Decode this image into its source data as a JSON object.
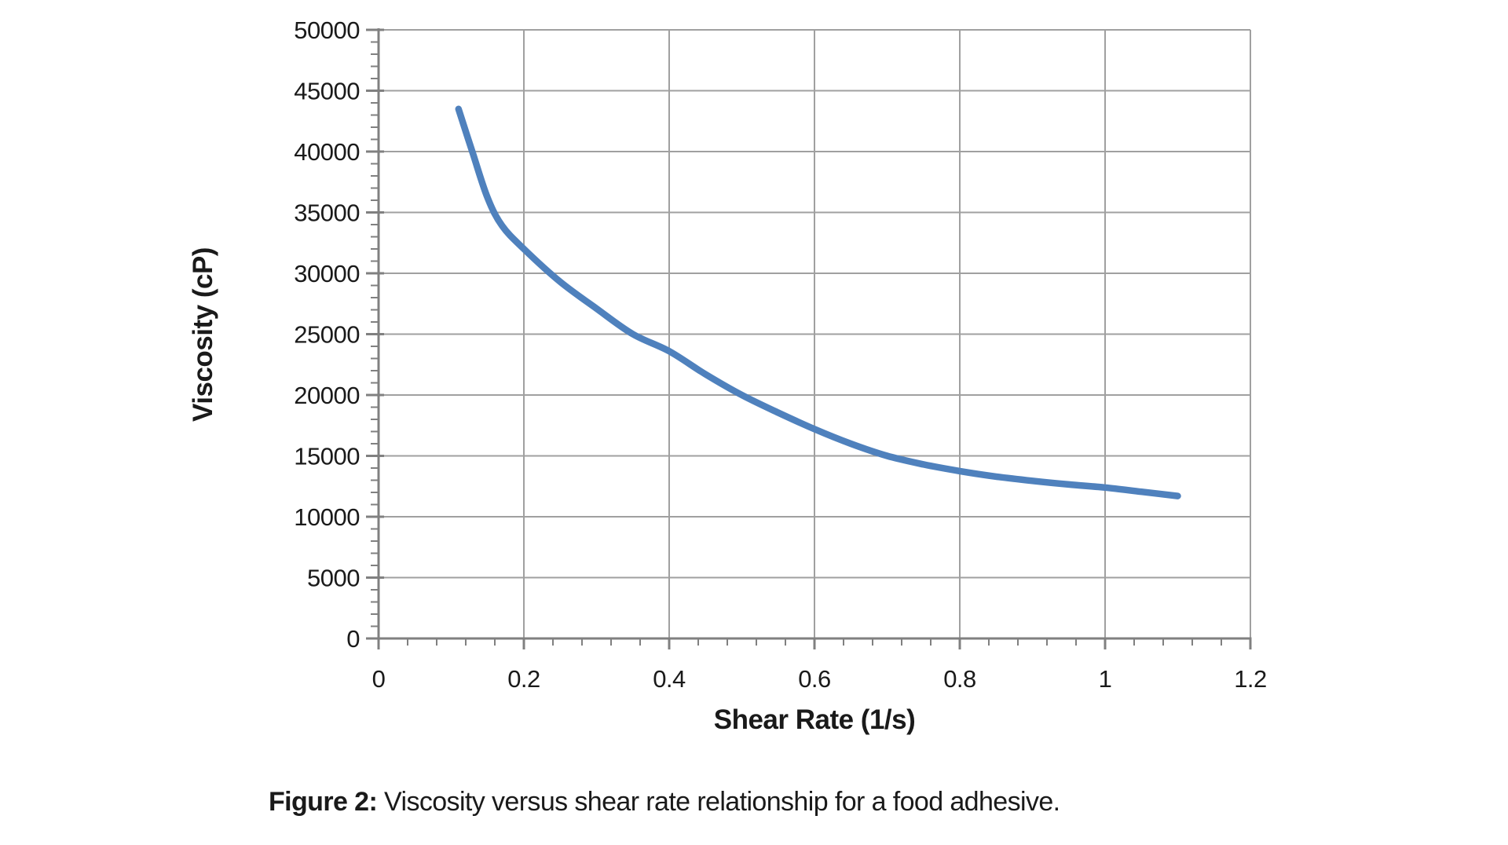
{
  "colors": {
    "line": "#4F81BD",
    "grid": "#A0A0A0",
    "axis": "#808080",
    "text": "#1A1A1A",
    "background": "#FFFFFF"
  },
  "caption": {
    "label": "Figure 2:",
    "text": "Viscosity versus shear rate relationship for a food adhesive."
  },
  "chart_data": {
    "type": "line",
    "title": "",
    "xlabel": "Shear Rate (1/s)",
    "ylabel": "Viscosity (cP)",
    "xlim": [
      0,
      1.2
    ],
    "ylim": [
      0,
      50000
    ],
    "grid": true,
    "legend": false,
    "x_major_ticks": [
      0,
      0.2,
      0.4,
      0.6,
      0.8,
      1,
      1.2
    ],
    "x_tick_labels": [
      "0",
      "0.2",
      "0.4",
      "0.6",
      "0.8",
      "1",
      "1.2"
    ],
    "x_minor_step": 0.04,
    "y_major_ticks": [
      0,
      5000,
      10000,
      15000,
      20000,
      25000,
      30000,
      35000,
      40000,
      45000,
      50000
    ],
    "y_tick_labels": [
      "0",
      "5000",
      "10000",
      "15000",
      "20000",
      "25000",
      "30000",
      "35000",
      "40000",
      "45000",
      "50000"
    ],
    "y_minor_step": 1000,
    "series": [
      {
        "name": "viscosity-vs-shear-rate",
        "x": [
          0.11,
          0.13,
          0.15,
          0.17,
          0.2,
          0.25,
          0.3,
          0.35,
          0.4,
          0.45,
          0.5,
          0.55,
          0.6,
          0.65,
          0.7,
          0.75,
          0.8,
          0.85,
          0.9,
          0.95,
          1.0,
          1.05,
          1.1
        ],
        "y": [
          43500,
          39800,
          36200,
          33900,
          32000,
          29300,
          27100,
          25000,
          23600,
          21700,
          20000,
          18550,
          17200,
          16000,
          15000,
          14300,
          13750,
          13300,
          12950,
          12650,
          12400,
          12050,
          11700
        ]
      }
    ]
  }
}
